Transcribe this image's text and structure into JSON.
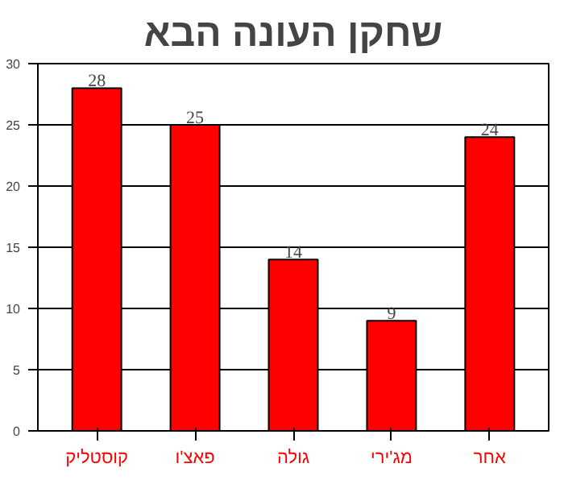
{
  "chart_data": {
    "type": "bar",
    "title": "שחקן העונה הבא",
    "categories": [
      "קוסטליק",
      "פאצ'ו",
      "גולה",
      "מג'ירי",
      "אחר"
    ],
    "values": [
      28,
      25,
      14,
      9,
      24
    ],
    "color": "#ff0000",
    "ylim": [
      0,
      30
    ],
    "yticks": [
      0,
      5,
      10,
      15,
      20,
      25,
      30
    ],
    "grid": "y",
    "data_labels": true
  }
}
